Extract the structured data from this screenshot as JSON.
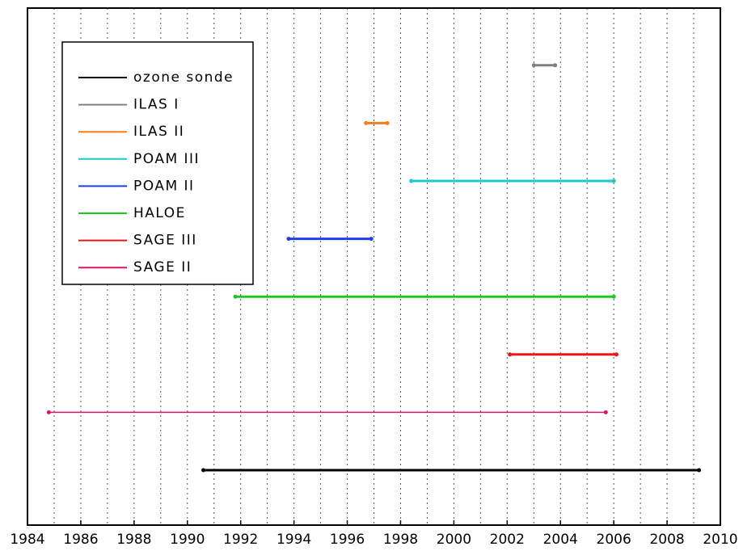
{
  "chart_data": {
    "type": "timeline",
    "series": [
      {
        "name": "ozone sonde",
        "color": "#000000",
        "start": 1990.6,
        "end": 2009.2
      },
      {
        "name": "ILAS I",
        "color": "#808080",
        "start": 2003.0,
        "end": 2003.8
      },
      {
        "name": "ILAS II",
        "color": "#f07f1e",
        "start": 1996.7,
        "end": 1997.5
      },
      {
        "name": "POAM III",
        "color": "#1ec8c8",
        "start": 1998.4,
        "end": 2006.0
      },
      {
        "name": "POAM II",
        "color": "#1e3cf0",
        "start": 1993.8,
        "end": 1996.9
      },
      {
        "name": "HALOE",
        "color": "#1ec81e",
        "start": 1991.8,
        "end": 2006.0
      },
      {
        "name": "SAGE III",
        "color": "#f01414",
        "start": 2002.1,
        "end": 2006.1
      },
      {
        "name": "SAGE II",
        "color": "#dc1464",
        "start": 1984.8,
        "end": 2005.7
      }
    ],
    "xlim": [
      1984,
      2010
    ],
    "xticks": [
      1984,
      1986,
      1988,
      1990,
      1992,
      1994,
      1996,
      1998,
      2000,
      2002,
      2004,
      2006,
      2008,
      2010
    ],
    "xminorticks": [
      1985,
      1987,
      1989,
      1991,
      1993,
      1995,
      1997,
      1999,
      2001,
      2003,
      2005,
      2007,
      2009
    ],
    "grid": true,
    "legend": "upper left"
  }
}
